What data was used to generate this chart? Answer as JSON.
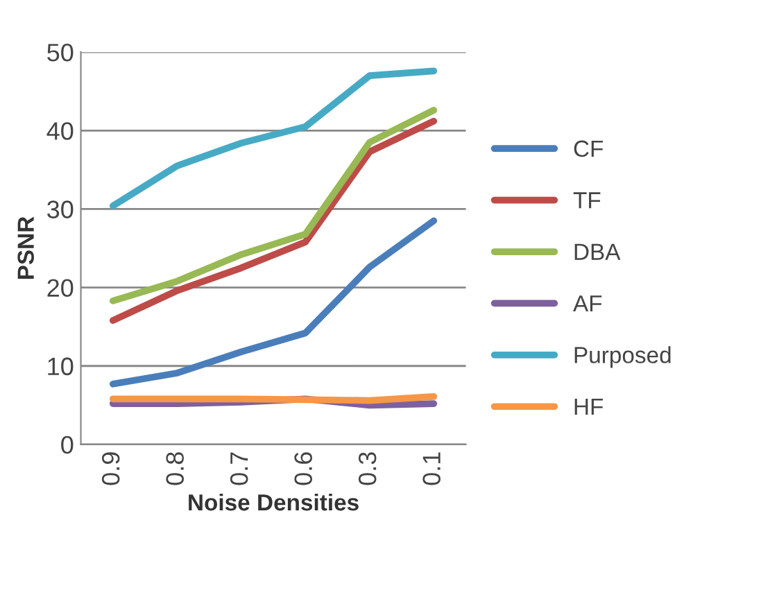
{
  "chart_data": {
    "type": "line",
    "xlabel": "Noise Densities",
    "ylabel": "PSNR",
    "categories": [
      "0.9",
      "0.8",
      "0.7",
      "0.6",
      "0.3",
      "0.1"
    ],
    "series": [
      {
        "name": "CF",
        "color": "#4a7ebb",
        "values": [
          7.7,
          9.1,
          11.8,
          14.2,
          22.6,
          28.5
        ]
      },
      {
        "name": "TF",
        "color": "#be4b48",
        "values": [
          15.8,
          19.6,
          22.5,
          25.8,
          37.3,
          41.2
        ]
      },
      {
        "name": "DBA",
        "color": "#98b954",
        "values": [
          18.3,
          20.8,
          24.2,
          26.8,
          38.5,
          42.6
        ]
      },
      {
        "name": "AF",
        "color": "#7d60a0",
        "values": [
          5.2,
          5.2,
          5.4,
          5.8,
          5.0,
          5.2
        ]
      },
      {
        "name": "Purposed",
        "color": "#46aac5",
        "values": [
          30.4,
          35.5,
          38.4,
          40.5,
          47.0,
          47.6
        ]
      },
      {
        "name": "HF",
        "color": "#f79646",
        "values": [
          5.8,
          5.8,
          5.8,
          5.7,
          5.6,
          6.1
        ]
      }
    ],
    "ylim": [
      0,
      50
    ],
    "yticks": [
      0,
      10,
      20,
      30,
      40,
      50
    ],
    "grid": "y",
    "legend": "right",
    "marker": "none",
    "line_style": "solid"
  }
}
